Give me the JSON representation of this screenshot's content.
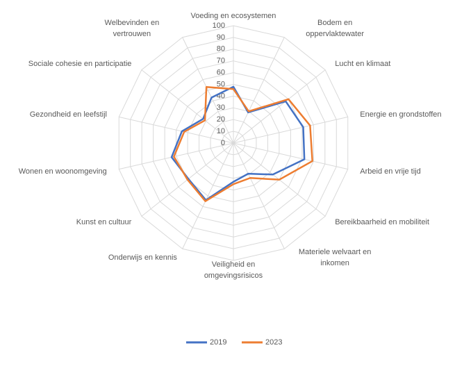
{
  "chart_data": {
    "type": "radar",
    "categories": [
      "Voeding en ecosystemen",
      "Bodem en oppervlaktewater",
      "Lucht en klimaat",
      "Energie en grondstoffen",
      "Arbeid en vrije tijd",
      "Bereikbaarheid en mobiliteit",
      "Materiele welvaart en inkomen",
      "Veiligheid en omgevingsrisicos",
      "Onderwijs en kennis",
      "Kunst en cultuur",
      "Wonen en woonomgeving",
      "Gezondheid en leefstijl",
      "Sociale cohesie en participatie",
      "Welbevinden en vertrouwen"
    ],
    "series": [
      {
        "name": "2019",
        "color": "#4472c4",
        "values": [
          48,
          29,
          57,
          61,
          62,
          43,
          29,
          33,
          54,
          49,
          54,
          45,
          33,
          43
        ]
      },
      {
        "name": "2023",
        "color": "#ed7d31",
        "values": [
          46,
          30,
          60,
          67,
          69,
          50,
          33,
          35,
          55,
          50,
          52,
          43,
          31,
          53
        ]
      }
    ],
    "ylim": [
      0,
      100
    ],
    "yticks": [
      0,
      10,
      20,
      30,
      40,
      50,
      60,
      70,
      80,
      90,
      100
    ],
    "grid": true,
    "legend": "bottom"
  }
}
